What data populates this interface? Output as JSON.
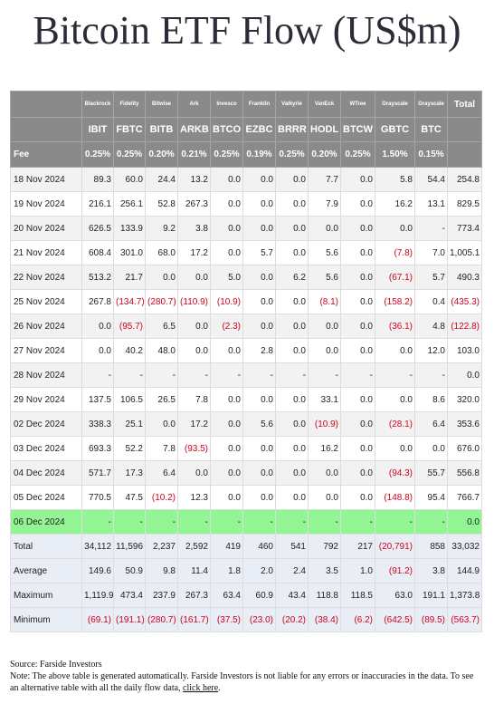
{
  "header": {
    "title": "Bitcoin ETF Flow (US$m)"
  },
  "table": {
    "issuers": [
      "Blackrock",
      "Fidelity",
      "Bitwise",
      "Ark",
      "Invesco",
      "Franklin",
      "Valkyrie",
      "VanEck",
      "WTree",
      "Grayscale",
      "Grayscale",
      "Total"
    ],
    "tickers": [
      "IBIT",
      "FBTC",
      "BITB",
      "ARKB",
      "BTCO",
      "EZBC",
      "BRRR",
      "HODL",
      "BTCW",
      "GBTC",
      "BTC"
    ],
    "fee": {
      "label": "Fee",
      "cells": [
        "0.25%",
        "0.25%",
        "0.20%",
        "0.21%",
        "0.25%",
        "0.19%",
        "0.25%",
        "0.20%",
        "0.25%",
        "1.50%",
        "0.15%"
      ]
    },
    "rows": [
      {
        "label": "18 Nov 2024",
        "cells": [
          "89.3",
          "60.0",
          "24.4",
          "13.2",
          "0.0",
          "0.0",
          "0.0",
          "7.7",
          "0.0",
          "5.8",
          "54.4",
          "254.8"
        ]
      },
      {
        "label": "19 Nov 2024",
        "cells": [
          "216.1",
          "256.1",
          "52.8",
          "267.3",
          "0.0",
          "0.0",
          "0.0",
          "7.9",
          "0.0",
          "16.2",
          "13.1",
          "829.5"
        ]
      },
      {
        "label": "20 Nov 2024",
        "cells": [
          "626.5",
          "133.9",
          "9.2",
          "3.8",
          "0.0",
          "0.0",
          "0.0",
          "0.0",
          "0.0",
          "0.0",
          "-",
          "773.4"
        ]
      },
      {
        "label": "21 Nov 2024",
        "cells": [
          "608.4",
          "301.0",
          "68.0",
          "17.2",
          "0.0",
          "5.7",
          "0.0",
          "5.6",
          "0.0",
          "(7.8)",
          "7.0",
          "1,005.1"
        ]
      },
      {
        "label": "22 Nov 2024",
        "cells": [
          "513.2",
          "21.7",
          "0.0",
          "0.0",
          "5.0",
          "0.0",
          "6.2",
          "5.6",
          "0.0",
          "(67.1)",
          "5.7",
          "490.3"
        ]
      },
      {
        "label": "25 Nov 2024",
        "cells": [
          "267.8",
          "(134.7)",
          "(280.7)",
          "(110.9)",
          "(10.9)",
          "0.0",
          "0.0",
          "(8.1)",
          "0.0",
          "(158.2)",
          "0.4",
          "(435.3)"
        ]
      },
      {
        "label": "26 Nov 2024",
        "cells": [
          "0.0",
          "(95.7)",
          "6.5",
          "0.0",
          "(2.3)",
          "0.0",
          "0.0",
          "0.0",
          "0.0",
          "(36.1)",
          "4.8",
          "(122.8)"
        ]
      },
      {
        "label": "27 Nov 2024",
        "cells": [
          "0.0",
          "40.2",
          "48.0",
          "0.0",
          "0.0",
          "2.8",
          "0.0",
          "0.0",
          "0.0",
          "0.0",
          "12.0",
          "103.0"
        ]
      },
      {
        "label": "28 Nov 2024",
        "cells": [
          "-",
          "-",
          "-",
          "-",
          "-",
          "-",
          "-",
          "-",
          "-",
          "-",
          "-",
          "0.0"
        ]
      },
      {
        "label": "29 Nov 2024",
        "cells": [
          "137.5",
          "106.5",
          "26.5",
          "7.8",
          "0.0",
          "0.0",
          "0.0",
          "33.1",
          "0.0",
          "0.0",
          "8.6",
          "320.0"
        ]
      },
      {
        "label": "02 Dec 2024",
        "cells": [
          "338.3",
          "25.1",
          "0.0",
          "17.2",
          "0.0",
          "5.6",
          "0.0",
          "(10.9)",
          "0.0",
          "(28.1)",
          "6.4",
          "353.6"
        ]
      },
      {
        "label": "03 Dec 2024",
        "cells": [
          "693.3",
          "52.2",
          "7.8",
          "(93.5)",
          "0.0",
          "0.0",
          "0.0",
          "16.2",
          "0.0",
          "0.0",
          "0.0",
          "676.0"
        ]
      },
      {
        "label": "04 Dec 2024",
        "cells": [
          "571.7",
          "17.3",
          "6.4",
          "0.0",
          "0.0",
          "0.0",
          "0.0",
          "0.0",
          "0.0",
          "(94.3)",
          "55.7",
          "556.8"
        ]
      },
      {
        "label": "05 Dec 2024",
        "cells": [
          "770.5",
          "47.5",
          "(10.2)",
          "12.3",
          "0.0",
          "0.0",
          "0.0",
          "0.0",
          "0.0",
          "(148.8)",
          "95.4",
          "766.7"
        ]
      },
      {
        "label": "06 Dec 2024",
        "color": "#93f493",
        "cells": [
          "-",
          "-",
          "-",
          "-",
          "-",
          "-",
          "-",
          "-",
          "-",
          "-",
          "-",
          "0.0"
        ]
      }
    ],
    "summary": [
      {
        "label": "Total",
        "cells": [
          "34,112",
          "11,596",
          "2,237",
          "2,592",
          "419",
          "460",
          "541",
          "792",
          "217",
          "(20,791)",
          "858",
          "33,032"
        ]
      },
      {
        "label": "Average",
        "cells": [
          "149.6",
          "50.9",
          "9.8",
          "11.4",
          "1.8",
          "2.0",
          "2.4",
          "3.5",
          "1.0",
          "(91.2)",
          "3.8",
          "144.9"
        ]
      },
      {
        "label": "Maximum",
        "cells": [
          "1,119.9",
          "473.4",
          "237.9",
          "267.3",
          "63.4",
          "60.9",
          "43.4",
          "118.8",
          "118.5",
          "63.0",
          "191.1",
          "1,373.8"
        ]
      },
      {
        "label": "Minimum",
        "cells": [
          "(69.1)",
          "(191.1)",
          "(280.7)",
          "(161.7)",
          "(37.5)",
          "(23.0)",
          "(20.2)",
          "(38.4)",
          "(6.2)",
          "(642.5)",
          "(89.5)",
          "(563.7)"
        ]
      }
    ]
  },
  "footer": {
    "source": "Source: Farside Investors",
    "note": "Note: The above table is generated automatically. Farside Investors is not liable for any errors or inaccuracies in the data. To see an alternative table with all the daily flow data, ",
    "link": "click here",
    "end": "."
  }
}
